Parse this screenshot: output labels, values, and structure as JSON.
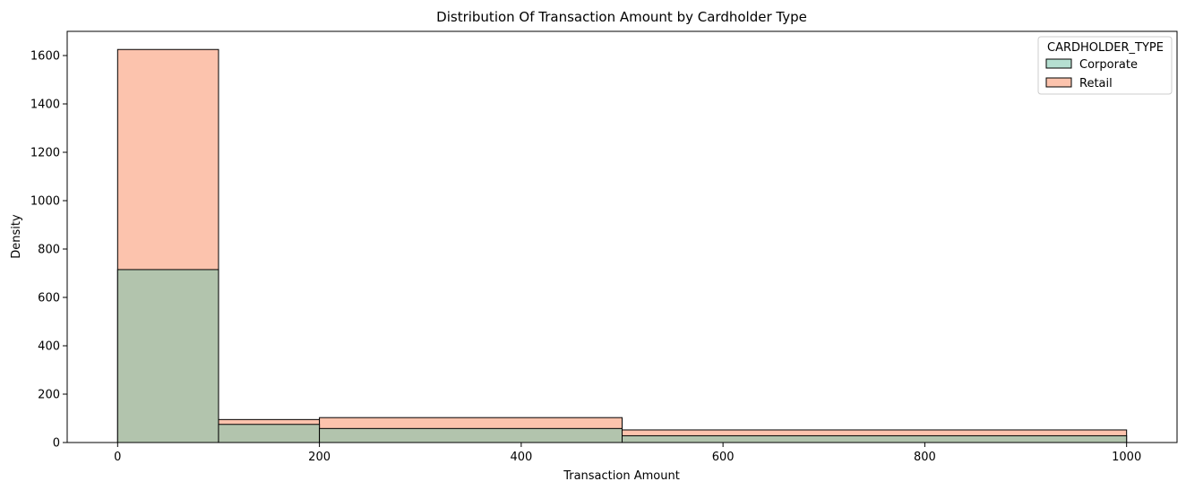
{
  "chart_data": {
    "type": "bar",
    "title": "Distribution Of Transaction Amount by Cardholder Type",
    "xlabel": "Transaction Amount",
    "ylabel": "Density",
    "xlim": [
      -50,
      1050
    ],
    "ylim": [
      0,
      1700
    ],
    "xticks": [
      0,
      200,
      400,
      600,
      800,
      1000
    ],
    "yticks": [
      0,
      200,
      400,
      600,
      800,
      1000,
      1200,
      1400,
      1600
    ],
    "bin_edges": [
      0,
      100,
      200,
      500,
      1000
    ],
    "grid": false,
    "legend": {
      "title": "CARDHOLDER_TYPE",
      "placement": "top-right"
    },
    "series": [
      {
        "name": "Corporate",
        "color": "#b2c4ad",
        "legend_color": "#b5dfd1",
        "values": [
          715,
          75,
          58,
          28
        ]
      },
      {
        "name": "Retail",
        "color": "#fcc3ad",
        "legend_color": "#fcc3ad",
        "values": [
          1625,
          95,
          103,
          52
        ]
      }
    ]
  }
}
